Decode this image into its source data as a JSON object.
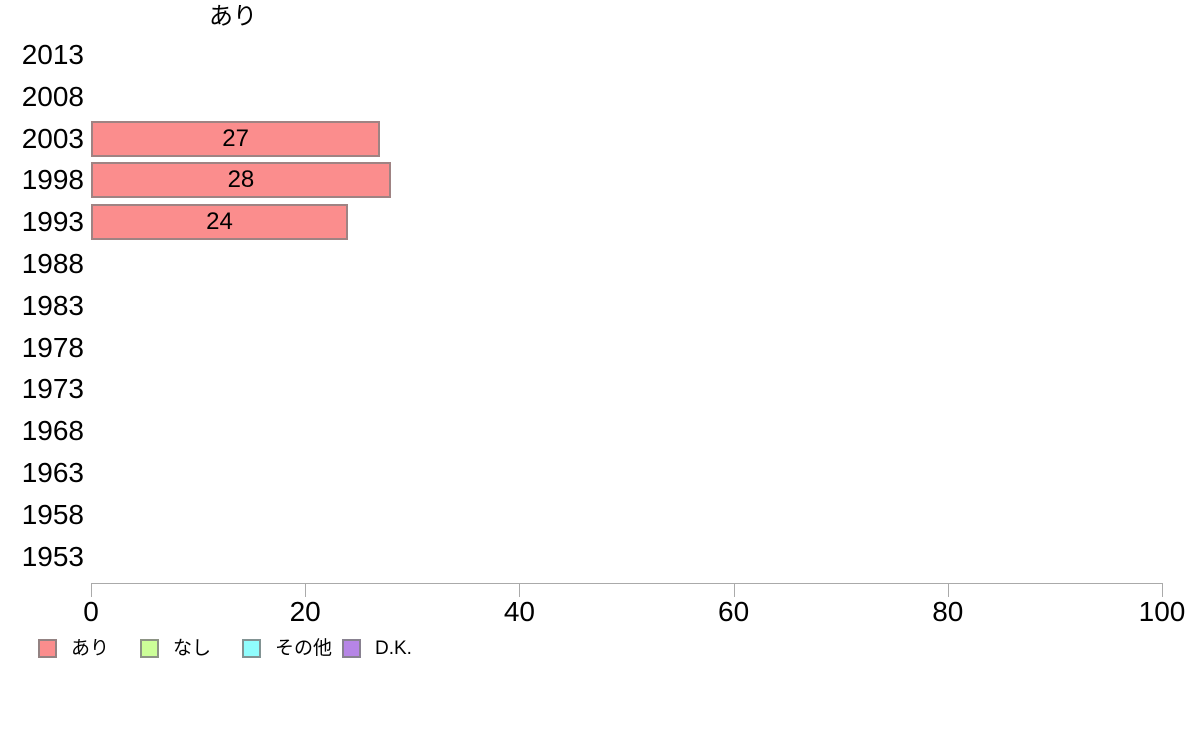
{
  "chart_data": {
    "type": "bar",
    "orientation": "horizontal",
    "title": "あり",
    "categories": [
      "2013",
      "2008",
      "2003",
      "1998",
      "1993",
      "1988",
      "1983",
      "1978",
      "1973",
      "1968",
      "1963",
      "1958",
      "1953"
    ],
    "series": [
      {
        "name": "あり",
        "color": "#fb8d8d",
        "values": [
          null,
          null,
          27,
          28,
          24,
          null,
          null,
          null,
          null,
          null,
          null,
          null,
          null
        ]
      }
    ],
    "legend": [
      {
        "label": "あり",
        "color": "#fb8d8d"
      },
      {
        "label": "なし",
        "color": "#ccfe98"
      },
      {
        "label": "その他",
        "color": "#90fdfd"
      },
      {
        "label": "D.K.",
        "color": "#b685e6"
      }
    ],
    "xlim": [
      0,
      100
    ],
    "x_ticks": [
      0,
      20,
      40,
      60,
      80,
      100
    ],
    "grid": false,
    "legend_position": "bottom-left",
    "colors": {
      "axis": "#aaaaaa",
      "text": "#000000",
      "background": "#ffffff"
    }
  }
}
